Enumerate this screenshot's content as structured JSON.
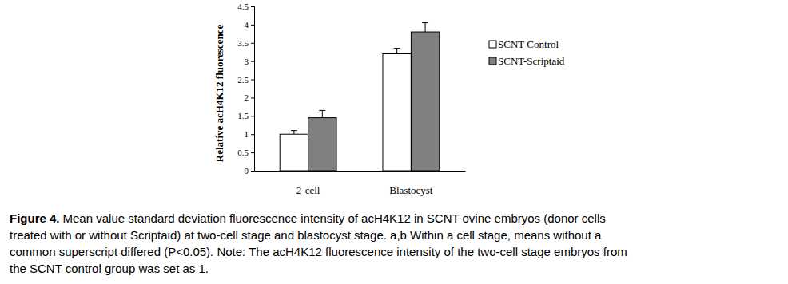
{
  "chart_data": {
    "type": "bar",
    "y_label": "Relative acH4K12 fluorescence",
    "categories": [
      "2-cell",
      "Blastocyst"
    ],
    "series": [
      {
        "name": "SCNT-Control",
        "color": "#ffffff",
        "values": [
          1.0,
          3.2
        ],
        "errors": [
          0.1,
          0.15
        ]
      },
      {
        "name": "SCNT-Scriptaid",
        "color": "#808080",
        "values": [
          1.45,
          3.8
        ],
        "errors": [
          0.2,
          0.25
        ]
      }
    ],
    "ylim": [
      0,
      4.5
    ],
    "yticks": [
      0,
      0.5,
      1,
      1.5,
      2,
      2.5,
      3,
      3.5,
      4,
      4.5
    ],
    "grid": false,
    "legend": "right",
    "caption": {
      "label": "Figure 4.",
      "lines": [
        "Mean value standard deviation fluorescence intensity of acH4K12 in SCNT ovine embryos (donor cells",
        "treated with or without Scriptaid) at two-cell stage and blastocyst stage. a,b Within a cell stage, means without a",
        "common superscript differed (P<0.05). Note: The acH4K12 fluorescence intensity of the two-cell stage embryos from",
        "the SCNT control group was set as 1."
      ]
    }
  }
}
